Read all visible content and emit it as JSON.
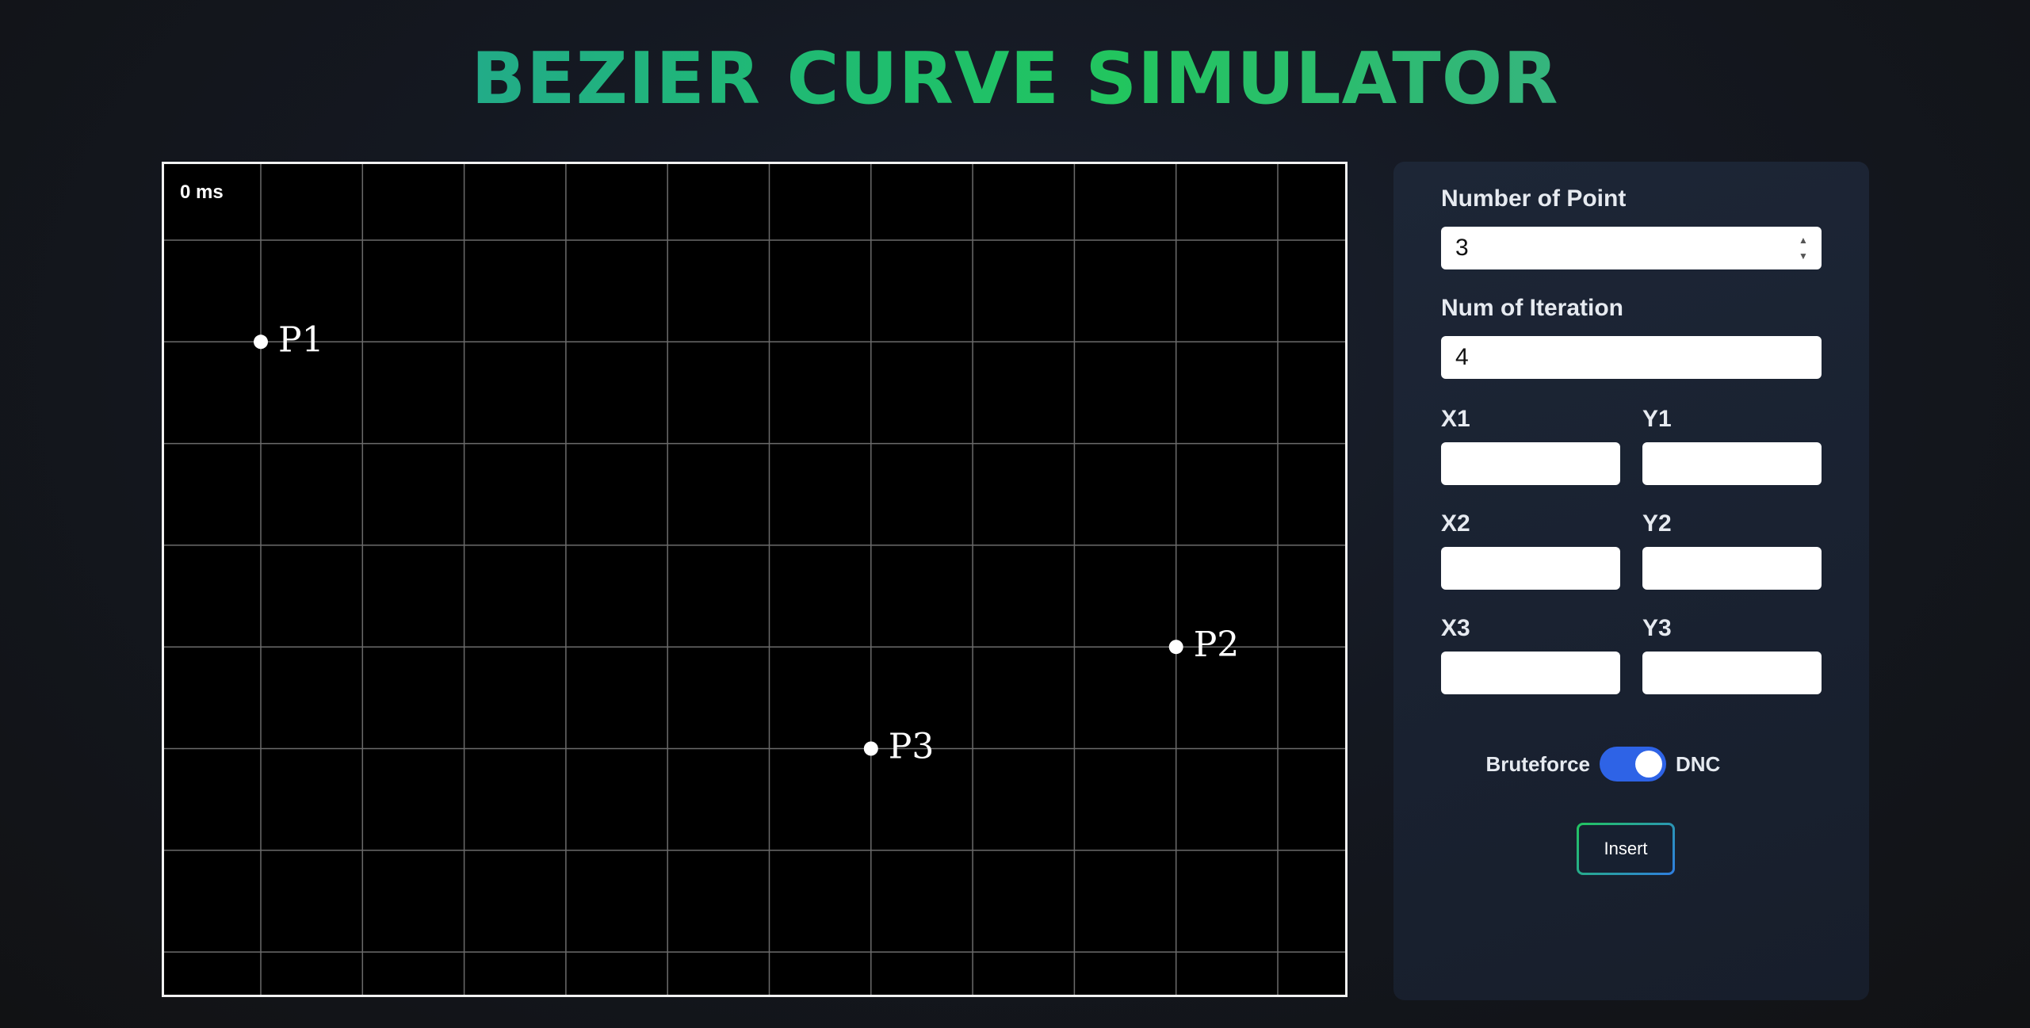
{
  "header": {
    "title": "BEZIER CURVE SIMULATOR"
  },
  "canvas": {
    "timer": "0 ms",
    "grid_color": "#6b6b6b",
    "background": "#000000",
    "points": [
      {
        "label": "P1",
        "x": 1,
        "y": 6
      },
      {
        "label": "P2",
        "x": 10,
        "y": 3
      },
      {
        "label": "P3",
        "x": 7,
        "y": 2
      }
    ]
  },
  "panel": {
    "num_points_label": "Number of Point",
    "num_points_value": "3",
    "num_iter_label": "Num of Iteration",
    "num_iter_value": "4",
    "coords": [
      {
        "x_label": "X1",
        "y_label": "Y1",
        "x_value": "",
        "y_value": ""
      },
      {
        "x_label": "X2",
        "y_label": "Y2",
        "x_value": "",
        "y_value": ""
      },
      {
        "x_label": "X3",
        "y_label": "Y3",
        "x_value": "",
        "y_value": ""
      }
    ],
    "toggle": {
      "left_label": "Bruteforce",
      "right_label": "DNC",
      "state": "DNC",
      "accent": "#2e63e6"
    },
    "insert_label": "Insert"
  },
  "icons": {
    "spinner": "number-spinner-icon"
  },
  "colors": {
    "title_gradient_start": "#2596a6",
    "title_gradient_mid": "#22c55e",
    "title_gradient_end": "#4aa3a0",
    "panel_bg": "#1b2333"
  }
}
